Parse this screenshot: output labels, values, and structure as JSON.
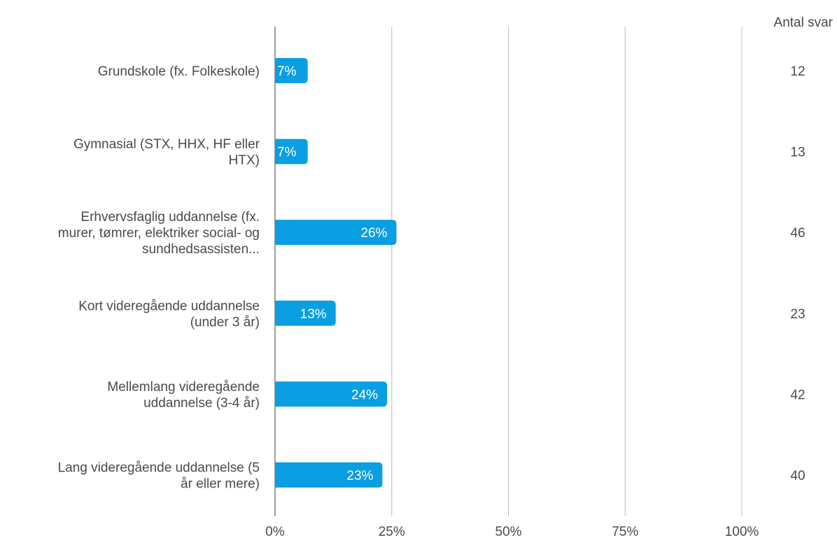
{
  "chart_data": {
    "type": "bar",
    "orientation": "horizontal",
    "categories": [
      [
        "Grundskole (fx. Folkeskole)"
      ],
      [
        "Gymnasial (STX, HHX, HF eller",
        "HTX)"
      ],
      [
        "Erhvervsfaglig uddannelse (fx.",
        "murer, tømrer, elektriker social- og",
        "sundhedsassisten..."
      ],
      [
        "Kort videregående uddannelse",
        "(under 3 år)"
      ],
      [
        "Mellemlang videregående",
        "uddannelse (3-4 år)"
      ],
      [
        "Lang videregående uddannelse (5",
        "år eller mere)"
      ]
    ],
    "values": [
      7,
      7,
      26,
      13,
      24,
      23
    ],
    "data_labels": [
      "7%",
      "7%",
      "26%",
      "13%",
      "24%",
      "23%"
    ],
    "counts_header": "Antal svar",
    "counts": [
      "12",
      "13",
      "46",
      "23",
      "42",
      "40"
    ],
    "x_ticks": [
      "0%",
      "25%",
      "50%",
      "75%",
      "100%"
    ],
    "xlim": [
      0,
      100
    ],
    "grid": true,
    "bar_color": "#0a9ee2"
  }
}
